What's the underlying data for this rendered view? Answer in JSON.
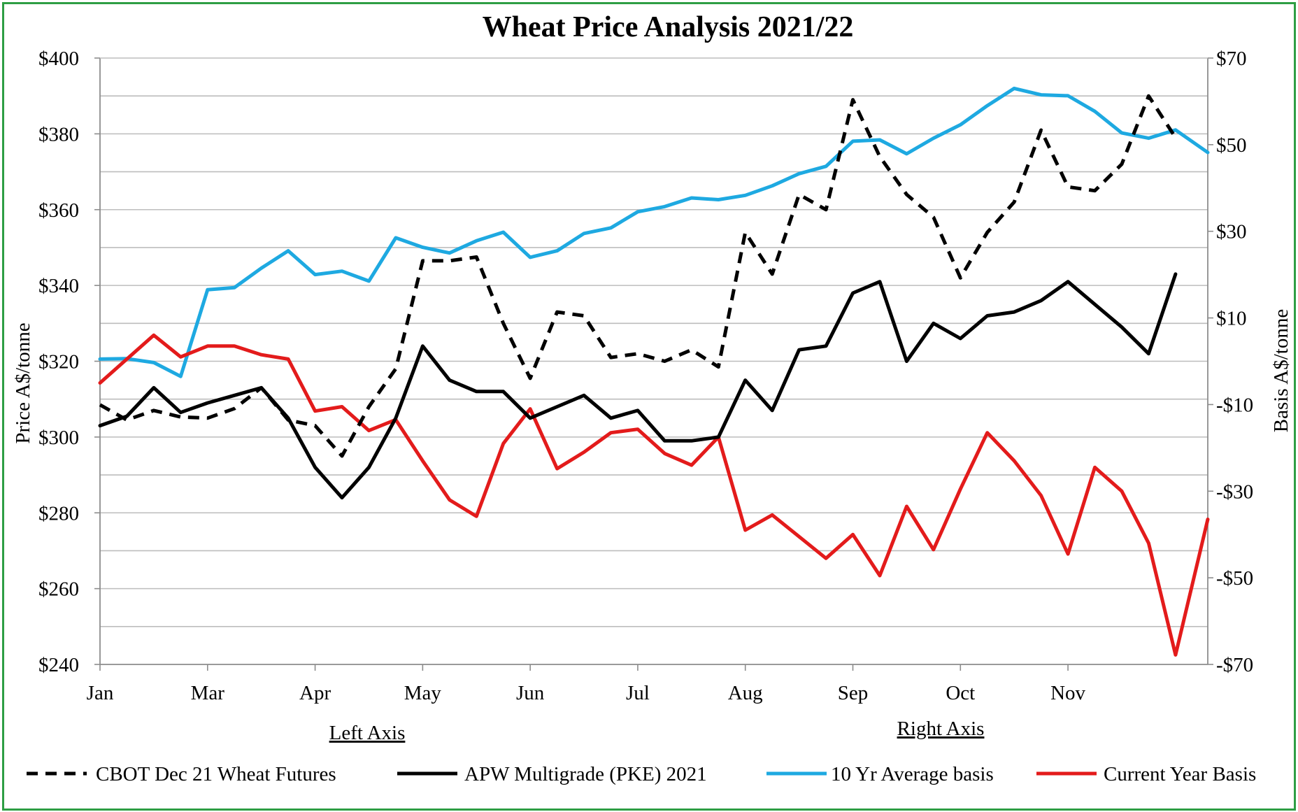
{
  "chart_data": {
    "type": "line",
    "title": "Wheat Price Analysis 2021/22",
    "left_axis": {
      "label": "Price A$/tonne",
      "range": [
        240,
        400
      ],
      "ticks": [
        "$240",
        "$260",
        "$280",
        "$300",
        "$320",
        "$340",
        "$360",
        "$380",
        "$400"
      ],
      "note": "Left Axis"
    },
    "right_axis": {
      "label": "Basis A$/tonne",
      "range": [
        -70,
        70
      ],
      "ticks": [
        "-$70",
        "-$50",
        "-$30",
        "-$10",
        "$10",
        "$30",
        "$50",
        "$70"
      ],
      "note": "Right Axis"
    },
    "x_range": [
      0,
      10.3
    ],
    "x_ticks": [
      "Jan",
      "Mar",
      "Apr",
      "May",
      "Jun",
      "Jul",
      "Aug",
      "Sep",
      "Oct",
      "Nov"
    ],
    "grid": true,
    "legend_position": "bottom",
    "series": [
      {
        "name": "CBOT Dec 21 Wheat Futures",
        "axis": "left",
        "color": "#000000",
        "dashed": true,
        "points": [
          [
            0,
            308.5
          ],
          [
            0.25,
            304.5
          ],
          [
            0.5,
            307
          ],
          [
            0.75,
            305.3
          ],
          [
            1,
            305
          ],
          [
            1.25,
            307.5
          ],
          [
            1.5,
            313
          ],
          [
            1.75,
            304.5
          ],
          [
            2,
            303
          ],
          [
            2.25,
            295
          ],
          [
            2.5,
            308
          ],
          [
            2.75,
            318
          ],
          [
            3,
            346.5
          ],
          [
            3.25,
            346.5
          ],
          [
            3.5,
            347.5
          ],
          [
            3.75,
            330
          ],
          [
            4,
            315.5
          ],
          [
            4.25,
            333
          ],
          [
            4.5,
            332
          ],
          [
            4.75,
            321
          ],
          [
            5,
            322
          ],
          [
            5.25,
            320
          ],
          [
            5.5,
            323
          ],
          [
            5.75,
            318.5
          ],
          [
            6,
            354
          ],
          [
            6.25,
            343
          ],
          [
            6.5,
            364
          ],
          [
            6.75,
            360
          ],
          [
            7,
            389
          ],
          [
            7.25,
            374
          ],
          [
            7.5,
            364
          ],
          [
            7.75,
            358
          ],
          [
            8,
            342
          ],
          [
            8.25,
            354
          ],
          [
            8.5,
            362
          ],
          [
            8.75,
            381
          ],
          [
            9,
            366
          ],
          [
            9.25,
            365
          ],
          [
            9.5,
            372
          ],
          [
            9.75,
            390
          ],
          [
            10,
            379
          ]
        ]
      },
      {
        "name": "APW Multigrade (PKE) 2021",
        "axis": "left",
        "color": "#000000",
        "dashed": false,
        "points": [
          [
            0,
            303
          ],
          [
            0.25,
            305.5
          ],
          [
            0.5,
            313
          ],
          [
            0.75,
            306.5
          ],
          [
            1,
            309
          ],
          [
            1.25,
            311
          ],
          [
            1.5,
            313
          ],
          [
            1.75,
            305
          ],
          [
            2,
            292
          ],
          [
            2.25,
            284
          ],
          [
            2.5,
            292
          ],
          [
            2.75,
            305
          ],
          [
            3,
            324
          ],
          [
            3.25,
            315
          ],
          [
            3.5,
            312
          ],
          [
            3.75,
            312
          ],
          [
            4,
            305
          ],
          [
            4.25,
            308
          ],
          [
            4.5,
            311
          ],
          [
            4.75,
            305
          ],
          [
            5,
            307
          ],
          [
            5.25,
            299
          ],
          [
            5.5,
            299
          ],
          [
            5.75,
            300
          ],
          [
            6,
            315
          ],
          [
            6.25,
            307
          ],
          [
            6.5,
            323
          ],
          [
            6.75,
            324
          ],
          [
            7,
            338
          ],
          [
            7.25,
            341
          ],
          [
            7.5,
            320
          ],
          [
            7.75,
            330
          ],
          [
            8,
            326
          ],
          [
            8.25,
            332
          ],
          [
            8.5,
            333
          ],
          [
            8.75,
            336
          ],
          [
            9,
            341
          ],
          [
            9.25,
            335
          ],
          [
            9.5,
            329
          ],
          [
            9.75,
            322
          ],
          [
            10,
            343
          ]
        ]
      },
      {
        "name": "10 Yr Average basis",
        "axis": "right",
        "color": "#1ea9e1",
        "dashed": false,
        "points": [
          [
            0,
            0.5
          ],
          [
            0.25,
            0.6
          ],
          [
            0.5,
            -0.3
          ],
          [
            0.75,
            -3.5
          ],
          [
            1,
            16.5
          ],
          [
            1.25,
            17
          ],
          [
            1.5,
            21.5
          ],
          [
            1.75,
            25.5
          ],
          [
            2,
            20
          ],
          [
            2.25,
            20.8
          ],
          [
            2.5,
            18.5
          ],
          [
            2.75,
            28.5
          ],
          [
            3,
            26.3
          ],
          [
            3.25,
            25
          ],
          [
            3.5,
            27.8
          ],
          [
            3.75,
            29.8
          ],
          [
            4,
            24
          ],
          [
            4.25,
            25.5
          ],
          [
            4.5,
            29.5
          ],
          [
            4.75,
            30.8
          ],
          [
            5,
            34.5
          ],
          [
            5.25,
            35.7
          ],
          [
            5.5,
            37.7
          ],
          [
            5.75,
            37.3
          ],
          [
            6,
            38.3
          ],
          [
            6.25,
            40.5
          ],
          [
            6.5,
            43.3
          ],
          [
            6.75,
            45
          ],
          [
            7,
            50.8
          ],
          [
            7.25,
            51.1
          ],
          [
            7.5,
            47.9
          ],
          [
            7.75,
            51.5
          ],
          [
            8,
            54.6
          ],
          [
            8.25,
            59
          ],
          [
            8.5,
            63
          ],
          [
            8.75,
            61.5
          ],
          [
            9,
            61.3
          ],
          [
            9.25,
            57.7
          ],
          [
            9.5,
            52.7
          ],
          [
            9.75,
            51.5
          ],
          [
            10,
            53.4
          ],
          [
            10.3,
            48.2
          ]
        ]
      },
      {
        "name": "Current Year Basis",
        "axis": "right",
        "color": "#e31b1b",
        "dashed": false,
        "points": [
          [
            0,
            -5
          ],
          [
            0.25,
            0.5
          ],
          [
            0.5,
            6
          ],
          [
            0.75,
            1
          ],
          [
            1,
            3.5
          ],
          [
            1.25,
            3.5
          ],
          [
            1.5,
            1.5
          ],
          [
            1.75,
            0.5
          ],
          [
            2,
            -11.5
          ],
          [
            2.25,
            -10.5
          ],
          [
            2.5,
            -16
          ],
          [
            2.75,
            -13.5
          ],
          [
            3,
            -23
          ],
          [
            3.25,
            -32
          ],
          [
            3.5,
            -35.8
          ],
          [
            3.75,
            -19
          ],
          [
            4,
            -11
          ],
          [
            4.25,
            -24.8
          ],
          [
            4.5,
            -21
          ],
          [
            4.75,
            -16.5
          ],
          [
            5,
            -15.7
          ],
          [
            5.25,
            -21.3
          ],
          [
            5.5,
            -24
          ],
          [
            5.75,
            -17.5
          ],
          [
            6,
            -39
          ],
          [
            6.25,
            -35.5
          ],
          [
            6.75,
            -45.5
          ],
          [
            7,
            -40
          ],
          [
            7.25,
            -49.5
          ],
          [
            7.5,
            -33.5
          ],
          [
            7.75,
            -43.5
          ],
          [
            8,
            -29.5
          ],
          [
            8.25,
            -16.5
          ],
          [
            8.5,
            -23
          ],
          [
            8.75,
            -31
          ],
          [
            9,
            -44.5
          ],
          [
            9.25,
            -24.5
          ],
          [
            9.5,
            -30
          ],
          [
            9.75,
            -42
          ],
          [
            10,
            -67.8
          ],
          [
            10.3,
            -36.5
          ]
        ]
      }
    ]
  }
}
